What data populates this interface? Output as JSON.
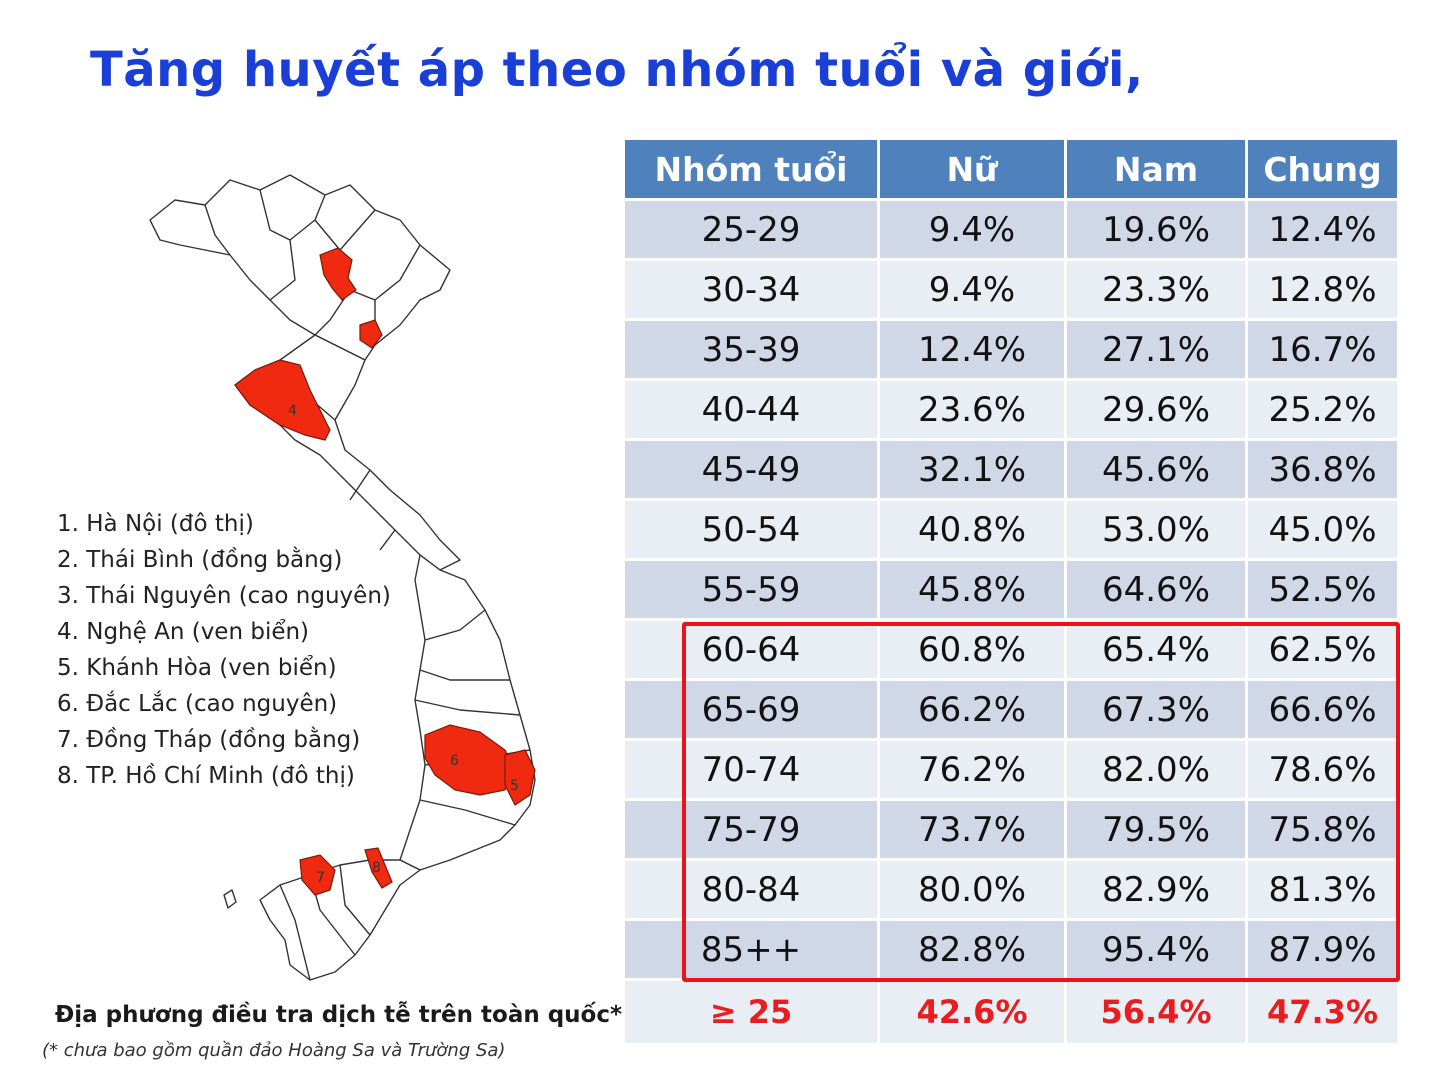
{
  "title": "Tăng huyết áp theo nhóm tuổi và giới,",
  "table": {
    "headers": [
      "Nhóm tuổi",
      "Nữ",
      "Nam",
      "Chung"
    ],
    "rows": [
      [
        "25-29",
        "9.4%",
        "19.6%",
        "12.4%"
      ],
      [
        "30-34",
        "9.4%",
        "23.3%",
        "12.8%"
      ],
      [
        "35-39",
        "12.4%",
        "27.1%",
        "16.7%"
      ],
      [
        "40-44",
        "23.6%",
        "29.6%",
        "25.2%"
      ],
      [
        "45-49",
        "32.1%",
        "45.6%",
        "36.8%"
      ],
      [
        "50-54",
        "40.8%",
        "53.0%",
        "45.0%"
      ],
      [
        "55-59",
        "45.8%",
        "64.6%",
        "52.5%"
      ],
      [
        "60-64",
        "60.8%",
        "65.4%",
        "62.5%"
      ],
      [
        "65-69",
        "66.2%",
        "67.3%",
        "66.6%"
      ],
      [
        "70-74",
        "76.2%",
        "82.0%",
        "78.6%"
      ],
      [
        "75-79",
        "73.7%",
        "79.5%",
        "75.8%"
      ],
      [
        "80-84",
        "80.0%",
        "82.9%",
        "81.3%"
      ],
      [
        "85++",
        "82.8%",
        "95.4%",
        "87.9%"
      ]
    ],
    "total": [
      "≥ 25",
      "42.6%",
      "56.4%",
      "47.3%"
    ]
  },
  "legend": [
    "1. Hà Nội (đô thị)",
    "2. Thái Bình (đồng bằng)",
    "3. Thái Nguyên (cao nguyên)",
    "4. Nghệ An (ven biển)",
    "5. Khánh Hòa (ven biển)",
    "6. Đắc Lắc (cao nguyên)",
    "7. Đồng Tháp (đồng bằng)",
    "8. TP. Hồ Chí Minh (đô thị)"
  ],
  "map_labels": [
    "4",
    "6",
    "5",
    "7",
    "8"
  ],
  "caption": "Địa phương điều tra dịch tễ trên toàn quốc*",
  "note": "(* chưa bao gồm quần đảo Hoàng Sa và Trường Sa)",
  "colors": {
    "title": "#1a3fd6",
    "header": "#4f81bd",
    "highlight": "#e8141c",
    "province": "#f02a10",
    "total_text": "#e81e1e"
  }
}
